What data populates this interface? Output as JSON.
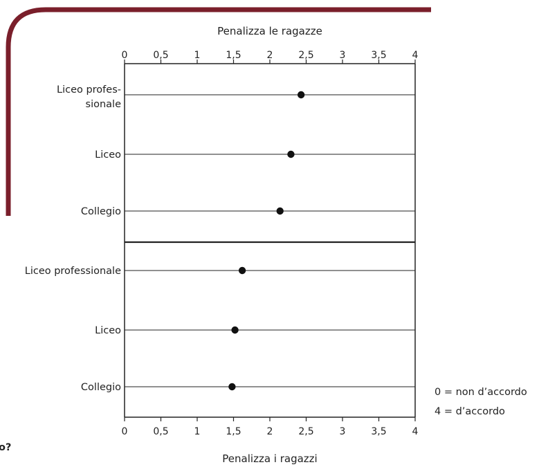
{
  "colors": {
    "accent_frame": "#7a1f2b",
    "axis": "#222222",
    "marker": "#111111"
  },
  "fragment_text": "o?",
  "legend_notes": [
    "0 = non d’accordo",
    "4 = d’accordo"
  ],
  "chart_data": [
    {
      "type": "scatter",
      "title": "Penalizza le ragazze",
      "axis_position": "top",
      "xlim": [
        0,
        4
      ],
      "xticks": [
        "0",
        "0,5",
        "1",
        "1,5",
        "2",
        "2,5",
        "3",
        "3,5",
        "4"
      ],
      "categories": [
        [
          "Liceo profes-",
          "sionale"
        ],
        [
          "Liceo"
        ],
        [
          "Collegio"
        ]
      ],
      "values": [
        2.43,
        2.29,
        2.14
      ]
    },
    {
      "type": "scatter",
      "title": "Penalizza i ragazzi",
      "axis_position": "bottom",
      "xlim": [
        0,
        4
      ],
      "xticks": [
        "0",
        "0,5",
        "1",
        "1,5",
        "2",
        "2,5",
        "3",
        "3,5",
        "4"
      ],
      "categories": [
        [
          "Liceo professionale"
        ],
        [
          "Liceo"
        ],
        [
          "Collegio"
        ]
      ],
      "values": [
        1.62,
        1.52,
        1.48
      ]
    }
  ]
}
